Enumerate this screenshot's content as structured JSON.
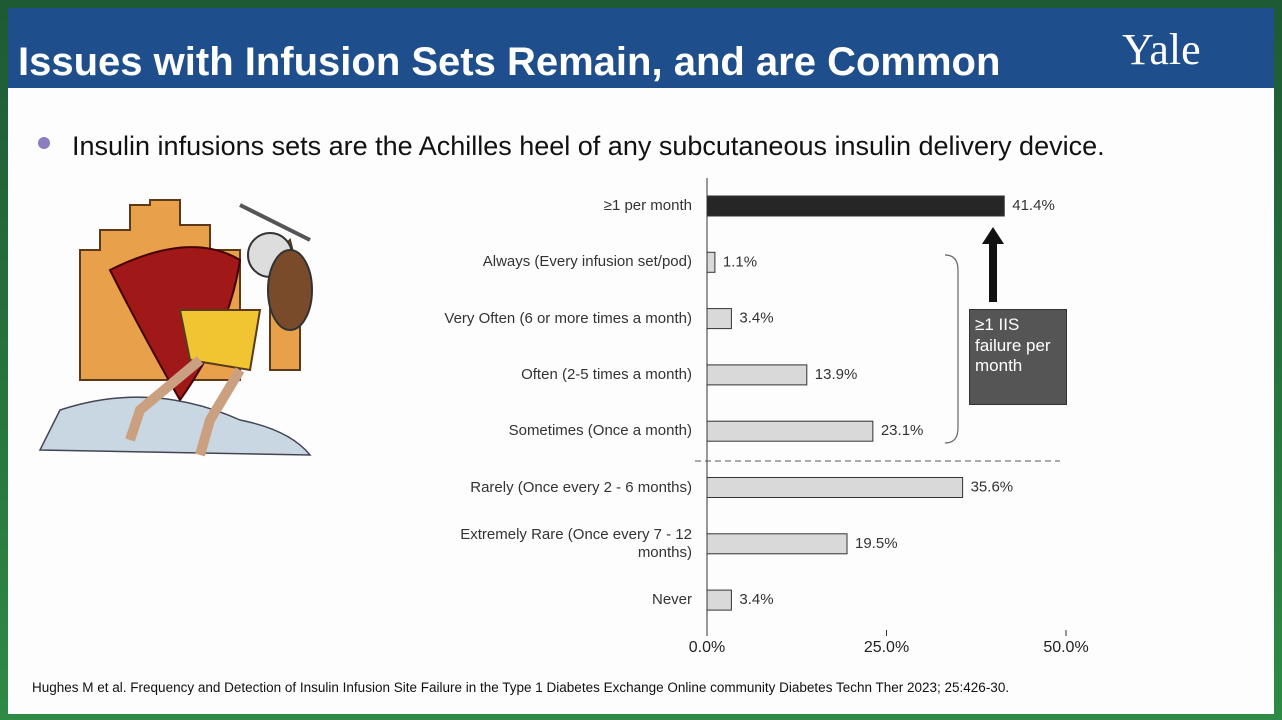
{
  "slide": {
    "title": "Issues with Infusion Sets Remain, and are Common",
    "logo": "Yale",
    "bullet": "Insulin infusions sets are the Achilles heel of any subcutaneous insulin delivery device.",
    "citation": "Hughes M et al. Frequency and Detection of Insulin Infusion Site Failure in the Type 1 Diabetes Exchange Online community  Diabetes Techn Ther 2023; 25:426-30."
  },
  "chart_data": {
    "type": "hbar",
    "categories": [
      "≥1 per month",
      "Always (Every infusion set/pod)",
      "Very Often (6 or more times a month)",
      "Often (2-5 times a month)",
      "Sometimes (Once a month)",
      "Rarely (Once every 2 - 6 months)",
      "Extremely Rare (Once every 7 - 12 months)",
      "Never"
    ],
    "values": [
      41.4,
      1.1,
      3.4,
      13.9,
      23.1,
      35.6,
      19.5,
      3.4
    ],
    "value_labels": [
      "41.4%",
      "1.1%",
      "3.4%",
      "13.9%",
      "23.1%",
      "35.6%",
      "19.5%",
      "3.4%"
    ],
    "colors": [
      "#262626",
      "#d9d9d9",
      "#d9d9d9",
      "#d9d9d9",
      "#d9d9d9",
      "#d9d9d9",
      "#d9d9d9",
      "#d9d9d9"
    ],
    "xlim": [
      0,
      50
    ],
    "xticks": [
      {
        "value": 0,
        "label": "0.0%"
      },
      {
        "value": 25,
        "label": "25.0%"
      },
      {
        "value": 50,
        "label": "50.0%"
      }
    ],
    "annotation": "≥1 IIS failure per month"
  }
}
